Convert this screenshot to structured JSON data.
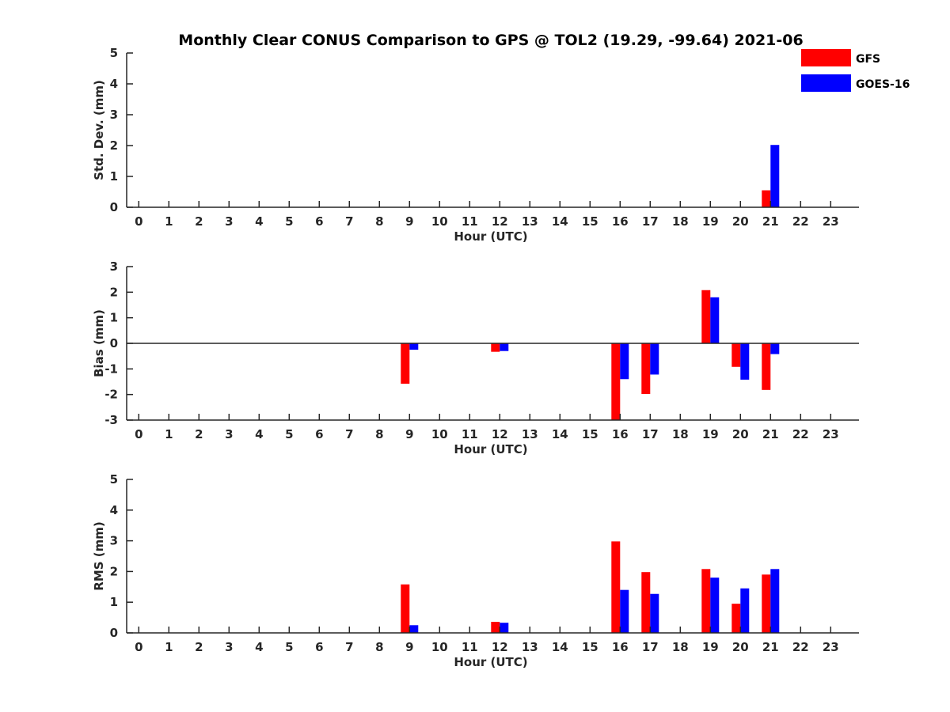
{
  "chart_data": {
    "type": "bar",
    "title": "Monthly Clear CONUS Comparison to GPS @ TOL2 (19.29, -99.64) 2021-06",
    "colors": {
      "GFS": "#ff0000",
      "GOES-16": "#0000ff",
      "axis": "#262626"
    },
    "legend": [
      {
        "name": "GFS",
        "color": "#ff0000"
      },
      {
        "name": "GOES-16",
        "color": "#0000ff"
      }
    ],
    "legend_position": "top-right",
    "categories": [
      "0",
      "1",
      "2",
      "3",
      "4",
      "5",
      "6",
      "7",
      "8",
      "9",
      "10",
      "11",
      "12",
      "13",
      "14",
      "15",
      "16",
      "17",
      "18",
      "19",
      "20",
      "21",
      "22",
      "23"
    ],
    "panels": [
      {
        "name": "stddev",
        "ylabel": "Std. Dev. (mm)",
        "xlabel": "Hour (UTC)",
        "ylim": [
          0,
          5
        ],
        "yticks": [
          "0",
          "1",
          "2",
          "3",
          "4",
          "5"
        ],
        "zero_line": false,
        "series": [
          {
            "name": "GFS",
            "values": [
              null,
              null,
              null,
              null,
              null,
              null,
              null,
              null,
              null,
              null,
              null,
              null,
              null,
              null,
              null,
              null,
              null,
              null,
              null,
              null,
              null,
              0.55,
              null,
              null
            ]
          },
          {
            "name": "GOES-16",
            "values": [
              null,
              null,
              null,
              null,
              null,
              null,
              null,
              null,
              null,
              null,
              null,
              null,
              null,
              null,
              null,
              null,
              null,
              null,
              null,
              null,
              null,
              2.02,
              null,
              null
            ]
          }
        ]
      },
      {
        "name": "bias",
        "ylabel": "Bias (mm)",
        "xlabel": "Hour (UTC)",
        "ylim": [
          -3,
          3
        ],
        "yticks": [
          "-3",
          "-2",
          "-1",
          "0",
          "1",
          "2",
          "3"
        ],
        "zero_line": true,
        "series": [
          {
            "name": "GFS",
            "values": [
              null,
              null,
              null,
              null,
              null,
              null,
              null,
              null,
              null,
              -1.58,
              null,
              null,
              -0.33,
              null,
              null,
              null,
              -3.0,
              -1.98,
              null,
              2.08,
              -0.92,
              -1.82,
              null,
              null
            ]
          },
          {
            "name": "GOES-16",
            "values": [
              null,
              null,
              null,
              null,
              null,
              null,
              null,
              null,
              null,
              -0.25,
              null,
              null,
              -0.3,
              null,
              null,
              null,
              -1.4,
              -1.22,
              null,
              1.8,
              -1.42,
              -0.42,
              null,
              null
            ]
          }
        ]
      },
      {
        "name": "rms",
        "ylabel": "RMS (mm)",
        "xlabel": "Hour (UTC)",
        "ylim": [
          0,
          5
        ],
        "yticks": [
          "0",
          "1",
          "2",
          "3",
          "4",
          "5"
        ],
        "zero_line": false,
        "series": [
          {
            "name": "GFS",
            "values": [
              null,
              null,
              null,
              null,
              null,
              null,
              null,
              null,
              null,
              1.58,
              null,
              null,
              0.36,
              null,
              null,
              null,
              2.98,
              1.98,
              null,
              2.08,
              0.95,
              1.9,
              null,
              null
            ]
          },
          {
            "name": "GOES-16",
            "values": [
              null,
              null,
              null,
              null,
              null,
              null,
              null,
              null,
              null,
              0.25,
              null,
              null,
              0.33,
              null,
              null,
              null,
              1.4,
              1.27,
              null,
              1.8,
              1.45,
              2.08,
              null,
              null
            ]
          }
        ]
      }
    ]
  }
}
